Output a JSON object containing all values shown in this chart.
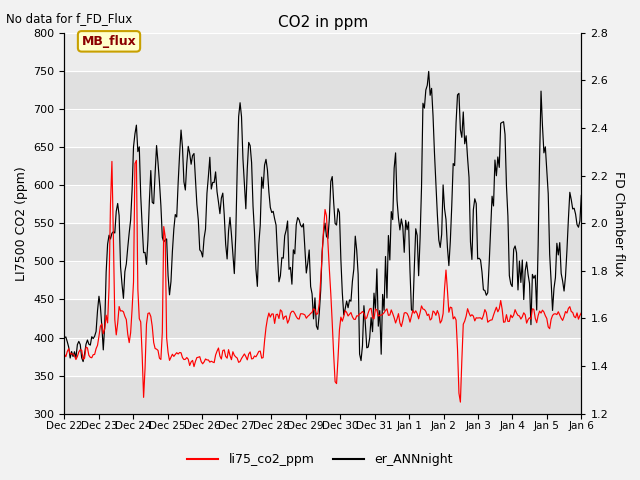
{
  "title": "CO2 in ppm",
  "ylabel_left": "LI7500 CO2 (ppm)",
  "ylabel_right": "FD Chamber flux",
  "ylim_left": [
    300,
    800
  ],
  "ylim_right": [
    1.2,
    2.8
  ],
  "yticks_left": [
    300,
    350,
    400,
    450,
    500,
    550,
    600,
    650,
    700,
    750,
    800
  ],
  "yticks_right": [
    1.2,
    1.4,
    1.6,
    1.8,
    2.0,
    2.2,
    2.4,
    2.6,
    2.8
  ],
  "no_data_text": "No data for f_FD_Flux",
  "annotation_text": "MB_flux",
  "legend_labels": [
    "li75_co2_ppm",
    "er_ANNnight"
  ],
  "x_tick_labels": [
    "Dec 22",
    "Dec 23",
    "Dec 24",
    "Dec 25",
    "Dec 26",
    "Dec 27",
    "Dec 28",
    "Dec 29",
    "Dec 30",
    "Dec 31",
    "Jan 1",
    "Jan 2",
    "Jan 3",
    "Jan 4",
    "Jan 5",
    "Jan 6"
  ],
  "xlim": [
    0,
    15
  ],
  "figsize": [
    6.4,
    4.8
  ],
  "dpi": 100,
  "fig_facecolor": "#f2f2f2",
  "plot_facecolor": "#ffffff",
  "band_light": "#ececec",
  "band_dark": "#e0e0e0",
  "red_color": "red",
  "black_color": "black",
  "annotation_fc": "#ffffcc",
  "annotation_ec": "#c8a000",
  "annotation_tc": "#8b0000",
  "grid_color": "#cccccc"
}
